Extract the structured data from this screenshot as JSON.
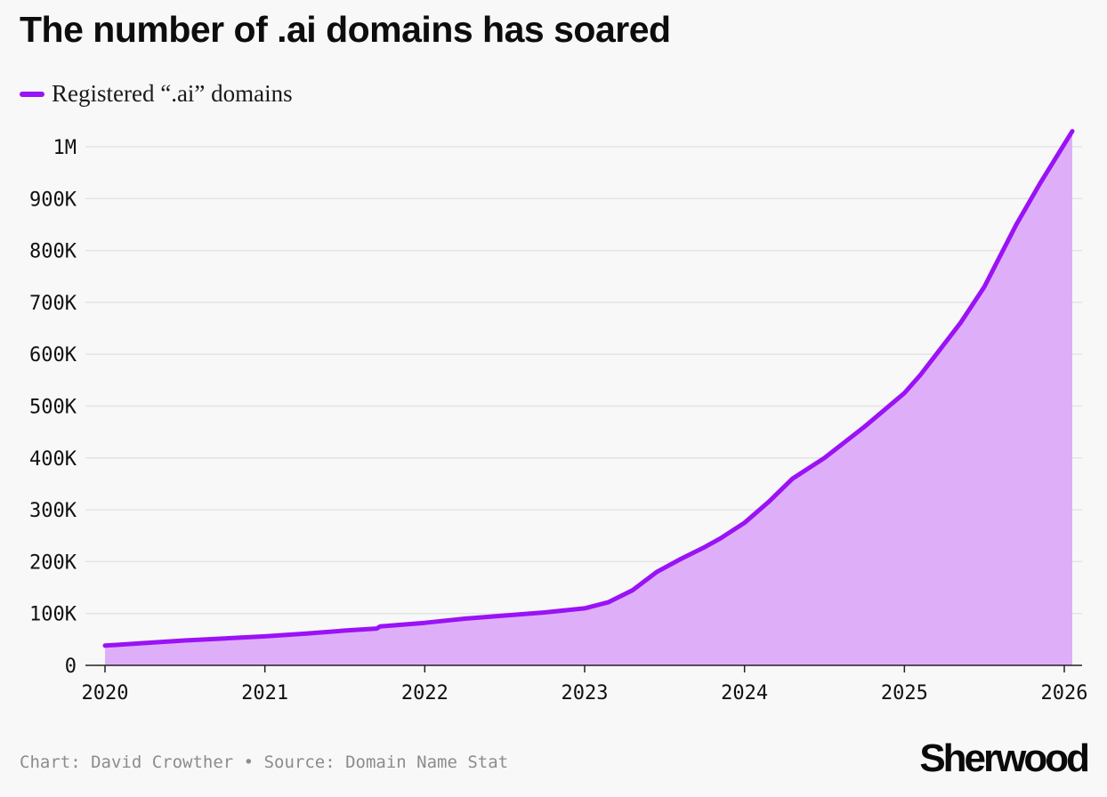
{
  "title": "The number of .ai domains has soared",
  "legend": {
    "label": "Registered “.ai” domains",
    "color": "#9a12f5"
  },
  "footer": {
    "credit": "Chart: David Crowther",
    "separator": "•",
    "source": "Source: Domain Name Stat"
  },
  "brand": "Sherwood",
  "colors": {
    "line": "#9a12f5",
    "area": "#dfaef9",
    "grid": "#e4e4e4",
    "axis": "#222222"
  },
  "chart_data": {
    "type": "area",
    "title": "The number of .ai domains has soared",
    "xlabel": "",
    "ylabel": "",
    "xlim": [
      2020.0,
      2026.0
    ],
    "ylim": [
      0,
      1000000
    ],
    "x_ticks": [
      {
        "value": 2020,
        "label": "2020"
      },
      {
        "value": 2021,
        "label": "2021"
      },
      {
        "value": 2022,
        "label": "2022"
      },
      {
        "value": 2023,
        "label": "2023"
      },
      {
        "value": 2024,
        "label": "2024"
      },
      {
        "value": 2025,
        "label": "2025"
      },
      {
        "value": 2026,
        "label": "2026"
      }
    ],
    "y_ticks": [
      {
        "value": 0,
        "label": "0"
      },
      {
        "value": 100000,
        "label": "100K"
      },
      {
        "value": 200000,
        "label": "200K"
      },
      {
        "value": 300000,
        "label": "300K"
      },
      {
        "value": 400000,
        "label": "400K"
      },
      {
        "value": 500000,
        "label": "500K"
      },
      {
        "value": 600000,
        "label": "600K"
      },
      {
        "value": 700000,
        "label": "700K"
      },
      {
        "value": 800000,
        "label": "800K"
      },
      {
        "value": 900000,
        "label": "900K"
      },
      {
        "value": 1000000,
        "label": "1M"
      }
    ],
    "grid": true,
    "legend_position": "top-left",
    "series": [
      {
        "name": "Registered “.ai” domains",
        "points": [
          [
            2020.0,
            38000
          ],
          [
            2020.25,
            43000
          ],
          [
            2020.5,
            48000
          ],
          [
            2020.75,
            52000
          ],
          [
            2021.0,
            56000
          ],
          [
            2021.25,
            61000
          ],
          [
            2021.5,
            67000
          ],
          [
            2021.7,
            71000
          ],
          [
            2021.72,
            75000
          ],
          [
            2022.0,
            82000
          ],
          [
            2022.25,
            90000
          ],
          [
            2022.5,
            96000
          ],
          [
            2022.75,
            102000
          ],
          [
            2023.0,
            110000
          ],
          [
            2023.15,
            122000
          ],
          [
            2023.3,
            145000
          ],
          [
            2023.45,
            180000
          ],
          [
            2023.6,
            205000
          ],
          [
            2023.75,
            228000
          ],
          [
            2023.85,
            245000
          ],
          [
            2024.0,
            275000
          ],
          [
            2024.15,
            315000
          ],
          [
            2024.3,
            360000
          ],
          [
            2024.5,
            400000
          ],
          [
            2024.75,
            460000
          ],
          [
            2025.0,
            525000
          ],
          [
            2025.1,
            560000
          ],
          [
            2025.2,
            600000
          ],
          [
            2025.35,
            660000
          ],
          [
            2025.5,
            730000
          ],
          [
            2025.6,
            790000
          ],
          [
            2025.7,
            850000
          ],
          [
            2025.85,
            930000
          ],
          [
            2026.0,
            1005000
          ],
          [
            2026.05,
            1030000
          ]
        ]
      }
    ]
  }
}
